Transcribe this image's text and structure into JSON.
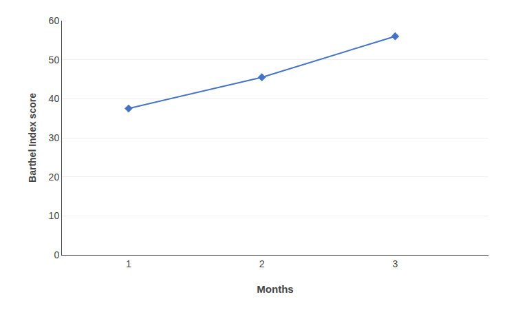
{
  "chart_data": {
    "type": "line",
    "x": [
      1,
      2,
      3
    ],
    "values": [
      37.5,
      45.5,
      56.0
    ],
    "color": "#4472C4",
    "marker": "diamond",
    "xlabel": "Months",
    "ylabel": "Barthel Index score",
    "xlim": [
      0.5,
      3.7
    ],
    "ylim": [
      0,
      60
    ],
    "xticks": [
      1,
      2,
      3
    ],
    "yticks": [
      0,
      10,
      20,
      30,
      40,
      50,
      60
    ],
    "grid": "y"
  }
}
